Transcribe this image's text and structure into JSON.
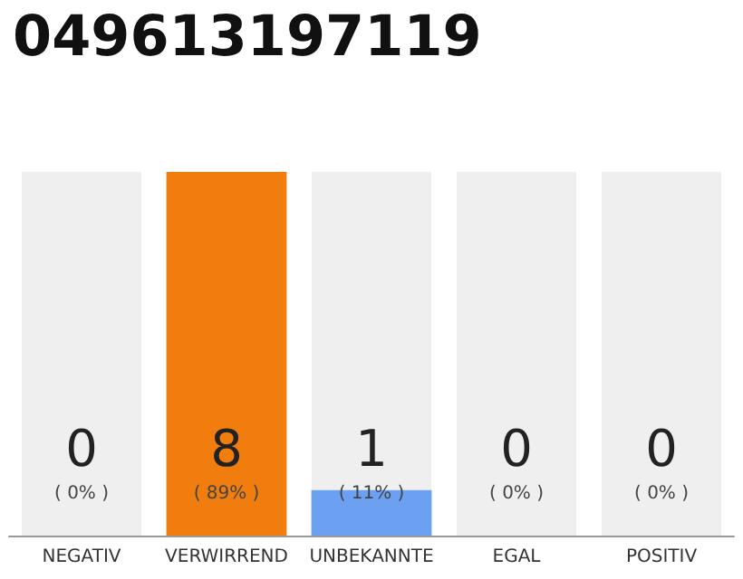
{
  "chart_data": {
    "type": "bar",
    "title": "049613197119",
    "categories": [
      "NEGATIV",
      "VERWIRREND",
      "UNBEKANNTE",
      "EGAL",
      "POSITIV"
    ],
    "values": [
      0,
      8,
      1,
      0,
      0
    ],
    "colors": [
      "#cccccc",
      "#f07d0e",
      "#6ba1f0",
      "#cccccc",
      "#cccccc"
    ],
    "bands": [
      {
        "axis": "x",
        "from": "NEGATIV",
        "to": "NEGATIV",
        "color": "#efefef"
      },
      {
        "axis": "x",
        "from": "UNBEKANNTE",
        "to": "UNBEKANNTE",
        "color": "#efefef"
      },
      {
        "axis": "x",
        "from": "EGAL",
        "to": "EGAL",
        "color": "#efefef"
      },
      {
        "axis": "x",
        "from": "POSITIV",
        "to": "POSITIV",
        "color": "#efefef"
      }
    ],
    "value_labels": [
      "0\n( 0% )",
      "8\n( 89% )",
      "1\n( 11% )",
      "0\n( 0% )",
      "0\n( 0% )"
    ]
  }
}
